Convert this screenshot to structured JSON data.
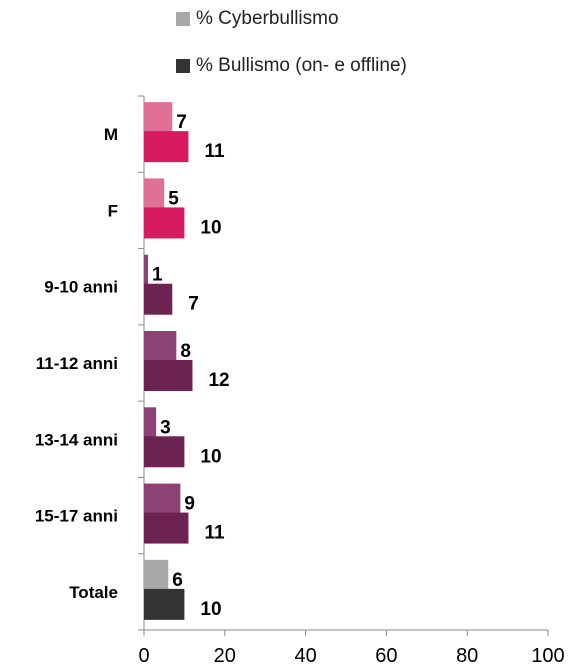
{
  "chart_data": {
    "type": "bar",
    "orientation": "horizontal",
    "categories": [
      "M",
      "F",
      "9-10 anni",
      "11-12 anni",
      "13-14 anni",
      "15-17 anni",
      "Totale"
    ],
    "series": [
      {
        "name": "% Cyberbullismo",
        "values": [
          7,
          5,
          1,
          8,
          3,
          9,
          6
        ],
        "value_labels": [
          "7",
          "5",
          "1",
          "8",
          "3",
          "9",
          "6"
        ]
      },
      {
        "name": "% Bullismo (on- e offline)",
        "values": [
          11,
          10,
          7,
          12,
          10,
          11,
          10
        ],
        "value_labels": [
          "11",
          "10",
          "7",
          "12",
          "10",
          "11",
          "10"
        ]
      }
    ],
    "xlim": [
      0,
      100
    ],
    "xticks": [
      "0",
      "20",
      "40",
      "60",
      "80",
      "100"
    ],
    "legend_position": "top",
    "grid": false,
    "colors": {
      "cyber": [
        "#e07098",
        "#e07098",
        "#8c4274",
        "#8c4274",
        "#8c4274",
        "#8c4274",
        "#a8a8a8"
      ],
      "bull": [
        "#d81b60",
        "#d81b60",
        "#6d2351",
        "#6d2351",
        "#6d2351",
        "#6d2351",
        "#333333"
      ],
      "legend_cyber": "#a8a8a8",
      "legend_bull": "#333333"
    }
  }
}
